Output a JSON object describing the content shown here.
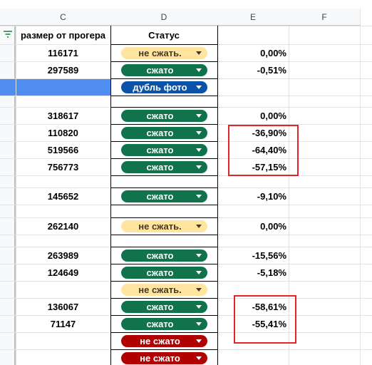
{
  "columns": [
    "C",
    "D",
    "E",
    "F"
  ],
  "header": {
    "size": "размер от прогера",
    "status": "Статус"
  },
  "rows": [
    {
      "size": "116171",
      "status": "не сжать.",
      "change": "0,00%"
    },
    {
      "size": "297589",
      "status": "сжато",
      "change": "-0,51%"
    },
    {
      "status": "дубль фото"
    },
    {
      "size": "318617",
      "status": "сжато",
      "change": "0,00%"
    },
    {
      "size": "110820",
      "status": "сжато",
      "change": "-36,90%"
    },
    {
      "size": "519566",
      "status": "сжато",
      "change": "-64,40%"
    },
    {
      "size": "756773",
      "status": "сжато",
      "change": "-57,15%"
    },
    {
      "size": "145652",
      "status": "сжато",
      "change": "-9,10%"
    },
    {
      "size": "262140",
      "status": "не сжать.",
      "change": "0,00%"
    },
    {
      "size": "263989",
      "status": "сжато",
      "change": "-15,56%"
    },
    {
      "size": "124649",
      "status": "сжато",
      "change": "-5,18%"
    },
    {
      "status": "не сжать."
    },
    {
      "size": "136067",
      "status": "сжато",
      "change": "-58,61%"
    },
    {
      "size": "71147",
      "status": "сжато",
      "change": "-55,41%"
    },
    {
      "status": "не сжато"
    },
    {
      "status": "не сжато"
    }
  ]
}
